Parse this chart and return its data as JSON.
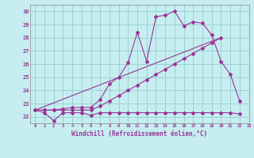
{
  "xlabel": "Windchill (Refroidissement éolien,°C)",
  "xlim": [
    -0.5,
    23
  ],
  "ylim": [
    21.5,
    30.5
  ],
  "xticks": [
    0,
    1,
    2,
    3,
    4,
    5,
    6,
    7,
    8,
    9,
    10,
    11,
    12,
    13,
    14,
    15,
    16,
    17,
    18,
    19,
    20,
    21,
    22,
    23
  ],
  "yticks": [
    22,
    23,
    24,
    25,
    26,
    27,
    28,
    29,
    30
  ],
  "background_color": "#c6eef0",
  "grid_color": "#99cccc",
  "line_color": "#993399",
  "curve1_x": [
    0,
    1,
    2,
    3,
    4,
    5,
    6,
    7,
    8,
    9,
    10,
    11,
    12,
    13,
    14,
    15,
    16,
    17,
    18,
    19,
    20,
    21,
    22
  ],
  "curve1_y": [
    22.5,
    22.3,
    21.7,
    22.3,
    22.3,
    22.3,
    22.1,
    22.3,
    22.3,
    22.3,
    22.3,
    22.3,
    22.3,
    22.3,
    22.3,
    22.3,
    22.3,
    22.3,
    22.3,
    22.3,
    22.3,
    22.3,
    22.2
  ],
  "curve2_x": [
    0,
    1,
    2,
    3,
    4,
    5,
    6,
    7,
    8,
    9,
    10,
    11,
    12,
    13,
    14,
    15,
    16,
    17,
    18,
    19,
    20,
    21,
    22
  ],
  "curve2_y": [
    22.5,
    22.5,
    22.5,
    22.5,
    22.5,
    22.5,
    22.5,
    22.8,
    23.2,
    23.6,
    24.0,
    24.4,
    24.8,
    25.2,
    25.6,
    26.0,
    26.4,
    26.8,
    27.2,
    27.6,
    28.0,
    null,
    null
  ],
  "curve3_x": [
    0,
    1,
    2,
    3,
    4,
    5,
    6,
    7,
    8,
    9,
    10,
    11,
    12,
    13,
    14,
    15,
    16,
    17,
    18,
    19,
    20,
    21,
    22
  ],
  "curve3_y": [
    22.5,
    22.5,
    22.5,
    22.6,
    22.7,
    22.7,
    22.7,
    23.3,
    24.5,
    25.0,
    26.1,
    28.4,
    26.2,
    29.6,
    29.7,
    30.0,
    28.9,
    29.2,
    29.1,
    28.2,
    26.2,
    25.2,
    23.2
  ]
}
